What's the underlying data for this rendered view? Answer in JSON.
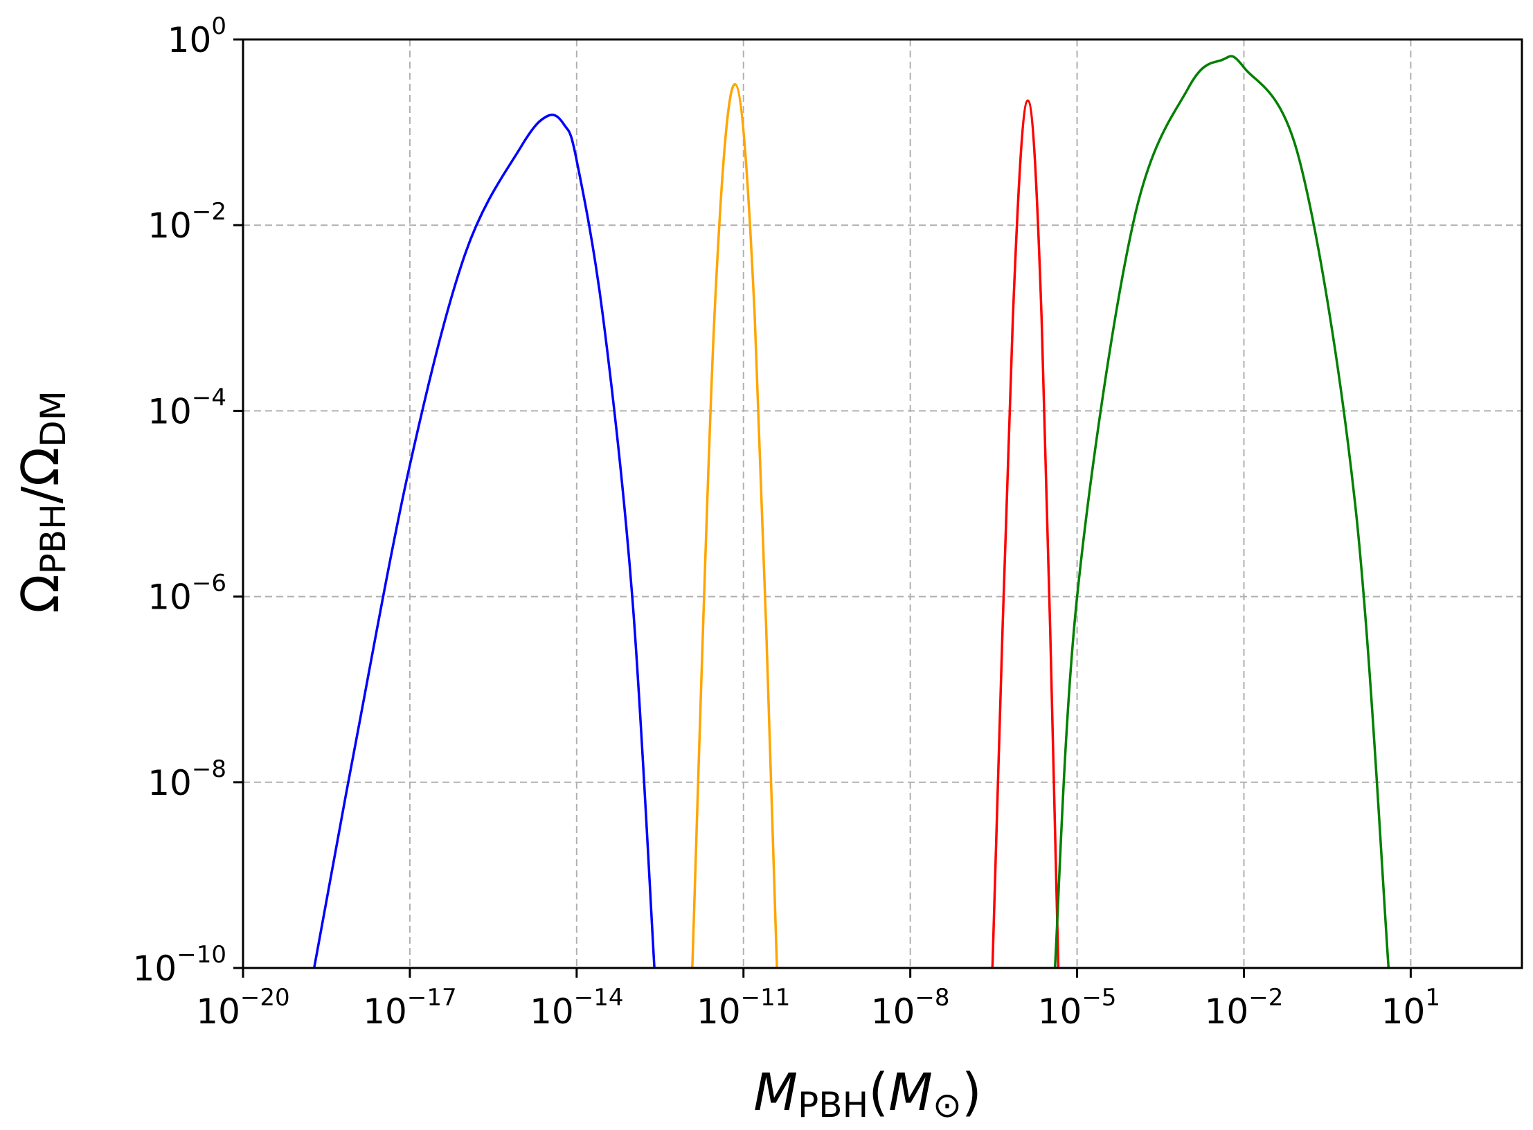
{
  "chart_data": {
    "type": "line",
    "xscale": "log",
    "yscale": "log",
    "xlim": [
      1e-20,
      1000.0
    ],
    "ylim": [
      1e-10,
      1
    ],
    "grid": true,
    "x_ticks": [
      {
        "value": 1e-20,
        "base": "10",
        "exp": "−20"
      },
      {
        "value": 1e-17,
        "base": "10",
        "exp": "−17"
      },
      {
        "value": 1e-14,
        "base": "10",
        "exp": "−14"
      },
      {
        "value": 1e-11,
        "base": "10",
        "exp": "−11"
      },
      {
        "value": 1e-08,
        "base": "10",
        "exp": "−8"
      },
      {
        "value": 1e-05,
        "base": "10",
        "exp": "−5"
      },
      {
        "value": 0.01,
        "base": "10",
        "exp": "−2"
      },
      {
        "value": 10,
        "base": "10",
        "exp": "1"
      }
    ],
    "y_ticks": [
      {
        "value": 1,
        "base": "10",
        "exp": "0"
      },
      {
        "value": 0.01,
        "base": "10",
        "exp": "−2"
      },
      {
        "value": 0.0001,
        "base": "10",
        "exp": "−4"
      },
      {
        "value": 1e-06,
        "base": "10",
        "exp": "−6"
      },
      {
        "value": 1e-08,
        "base": "10",
        "exp": "−8"
      },
      {
        "value": 1e-10,
        "base": "10",
        "exp": "−10"
      }
    ],
    "xlabel": {
      "main": "M",
      "sub": "PBH",
      "open": "(",
      "inner": "M",
      "inner_sub": "⊙",
      "close": ")"
    },
    "ylabel": {
      "main1": "Ω",
      "sub1": "PBH",
      "slash": "/",
      "main2": "Ω",
      "sub2": "DM"
    },
    "series": [
      {
        "color": "#0000ff",
        "points": [
          [
            1.9e-19,
            1e-10
          ],
          [
            1e-18,
            2.2e-08
          ],
          [
            1e-17,
            2.6e-05
          ],
          [
            1e-16,
            0.005
          ],
          [
            1e-15,
            0.07
          ],
          [
            3e-15,
            0.15
          ],
          [
            6e-15,
            0.12
          ],
          [
            1e-14,
            0.05
          ],
          [
            3e-14,
            0.001
          ],
          [
            1e-13,
            1e-06
          ],
          [
            2.5e-13,
            1e-10
          ]
        ]
      },
      {
        "color": "#ffa500",
        "points": [
          [
            1.2e-12,
            1e-10
          ],
          [
            3e-12,
            0.001
          ],
          [
            7e-12,
            0.33
          ],
          [
            1.6e-11,
            0.001
          ],
          [
            4e-11,
            1e-10
          ]
        ]
      },
      {
        "color": "#ff0000",
        "points": [
          [
            3e-07,
            1e-10
          ],
          [
            7e-07,
            0.001
          ],
          [
            1.3e-06,
            0.22
          ],
          [
            2.3e-06,
            0.001
          ],
          [
            4.6e-06,
            1e-10
          ]
        ]
      },
      {
        "color": "#008000",
        "points": [
          [
            4e-06,
            1e-10
          ],
          [
            1e-05,
            1e-06
          ],
          [
            0.0001,
            0.01
          ],
          [
            0.001,
            0.3
          ],
          [
            0.004,
            0.6
          ],
          [
            0.01,
            0.5
          ],
          [
            0.1,
            0.05
          ],
          [
            1,
            1e-05
          ],
          [
            4,
            1e-10
          ]
        ]
      }
    ]
  }
}
